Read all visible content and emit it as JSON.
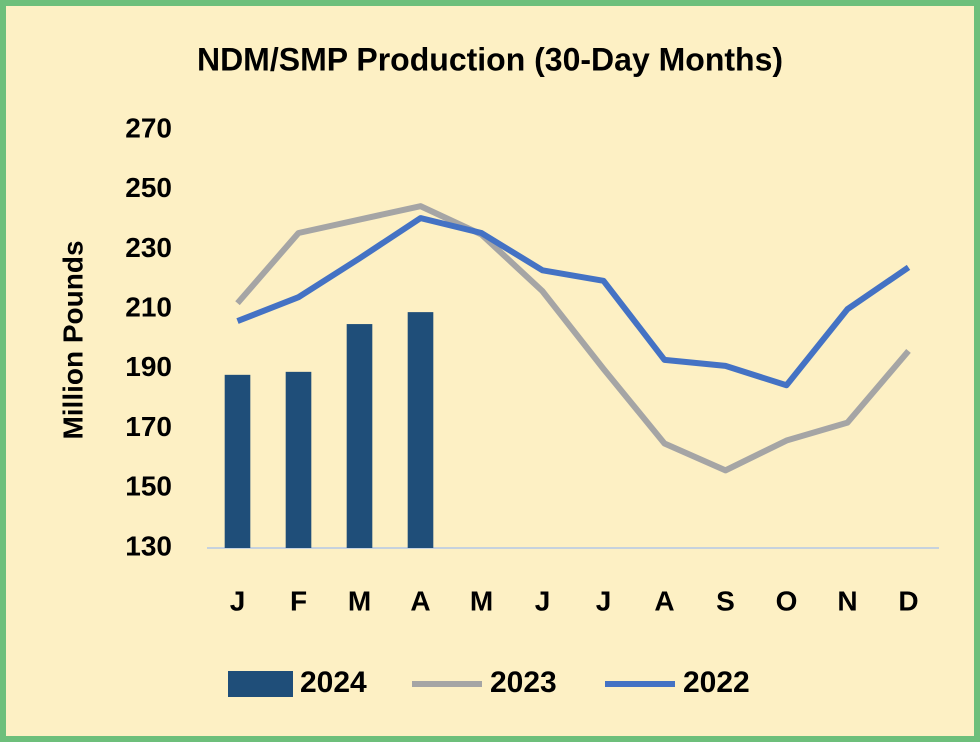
{
  "chart_data": {
    "type": "bar",
    "title": "NDM/SMP Production (30-Day Months)",
    "y_label": "Million Pounds",
    "categories": [
      "J",
      "F",
      "M",
      "A",
      "M",
      "J",
      "J",
      "A",
      "S",
      "O",
      "N",
      "D"
    ],
    "ylim": [
      130,
      270
    ],
    "yticks": [
      130,
      150,
      170,
      190,
      210,
      230,
      250,
      270
    ],
    "grid": false,
    "legend": "bottom",
    "series": [
      {
        "name": "2024",
        "type": "bar",
        "color": "#1f4e79",
        "values": [
          188,
          189,
          205,
          209,
          null,
          null,
          null,
          null,
          null,
          null,
          null,
          null
        ]
      },
      {
        "name": "2023",
        "type": "line",
        "color": "#a5a5a5",
        "values": [
          212,
          235.5,
          240,
          244.5,
          235,
          216,
          190,
          165,
          156,
          166,
          172,
          196
        ]
      },
      {
        "name": "2022",
        "type": "line",
        "color": "#4472c4",
        "values": [
          206,
          214,
          227,
          240.5,
          235.5,
          223,
          219.5,
          193,
          191,
          184.5,
          210,
          224
        ]
      }
    ]
  }
}
